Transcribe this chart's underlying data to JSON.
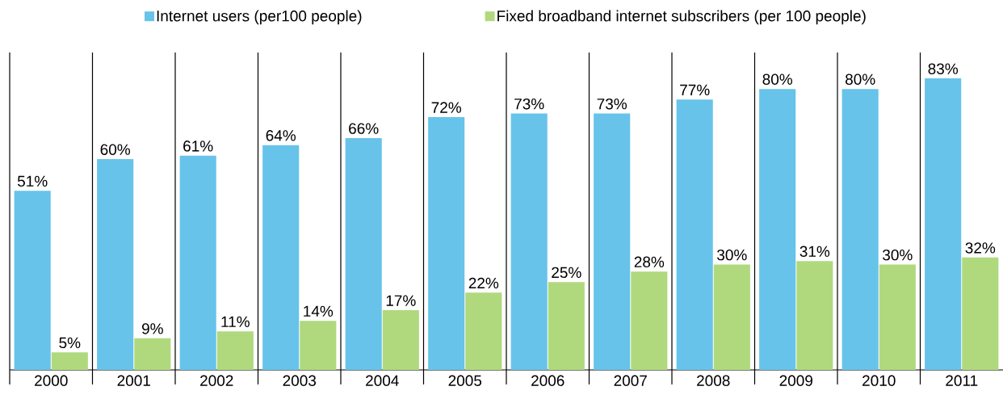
{
  "chart_data": {
    "type": "bar",
    "categories": [
      "2000",
      "2001",
      "2002",
      "2003",
      "2004",
      "2005",
      "2006",
      "2007",
      "2008",
      "2009",
      "2010",
      "2011"
    ],
    "series": [
      {
        "name": "Internet users (per100 people)",
        "color": "#67c3ea",
        "values": [
          51,
          60,
          61,
          64,
          66,
          72,
          73,
          73,
          77,
          80,
          80,
          83
        ],
        "value_labels": [
          "51%",
          "60%",
          "61%",
          "64%",
          "66%",
          "72%",
          "73%",
          "73%",
          "77%",
          "80%",
          "80%",
          "83%"
        ]
      },
      {
        "name": "Fixed broadband internet subscribers  (per 100 people)",
        "color": "#b0d97e",
        "values": [
          5,
          9,
          11,
          14,
          17,
          22,
          25,
          28,
          30,
          31,
          30,
          32
        ],
        "value_labels": [
          "5%",
          "9%",
          "11%",
          "14%",
          "17%",
          "22%",
          "25%",
          "28%",
          "30%",
          "31%",
          "30%",
          "32%"
        ]
      }
    ],
    "legend": "top"
  }
}
